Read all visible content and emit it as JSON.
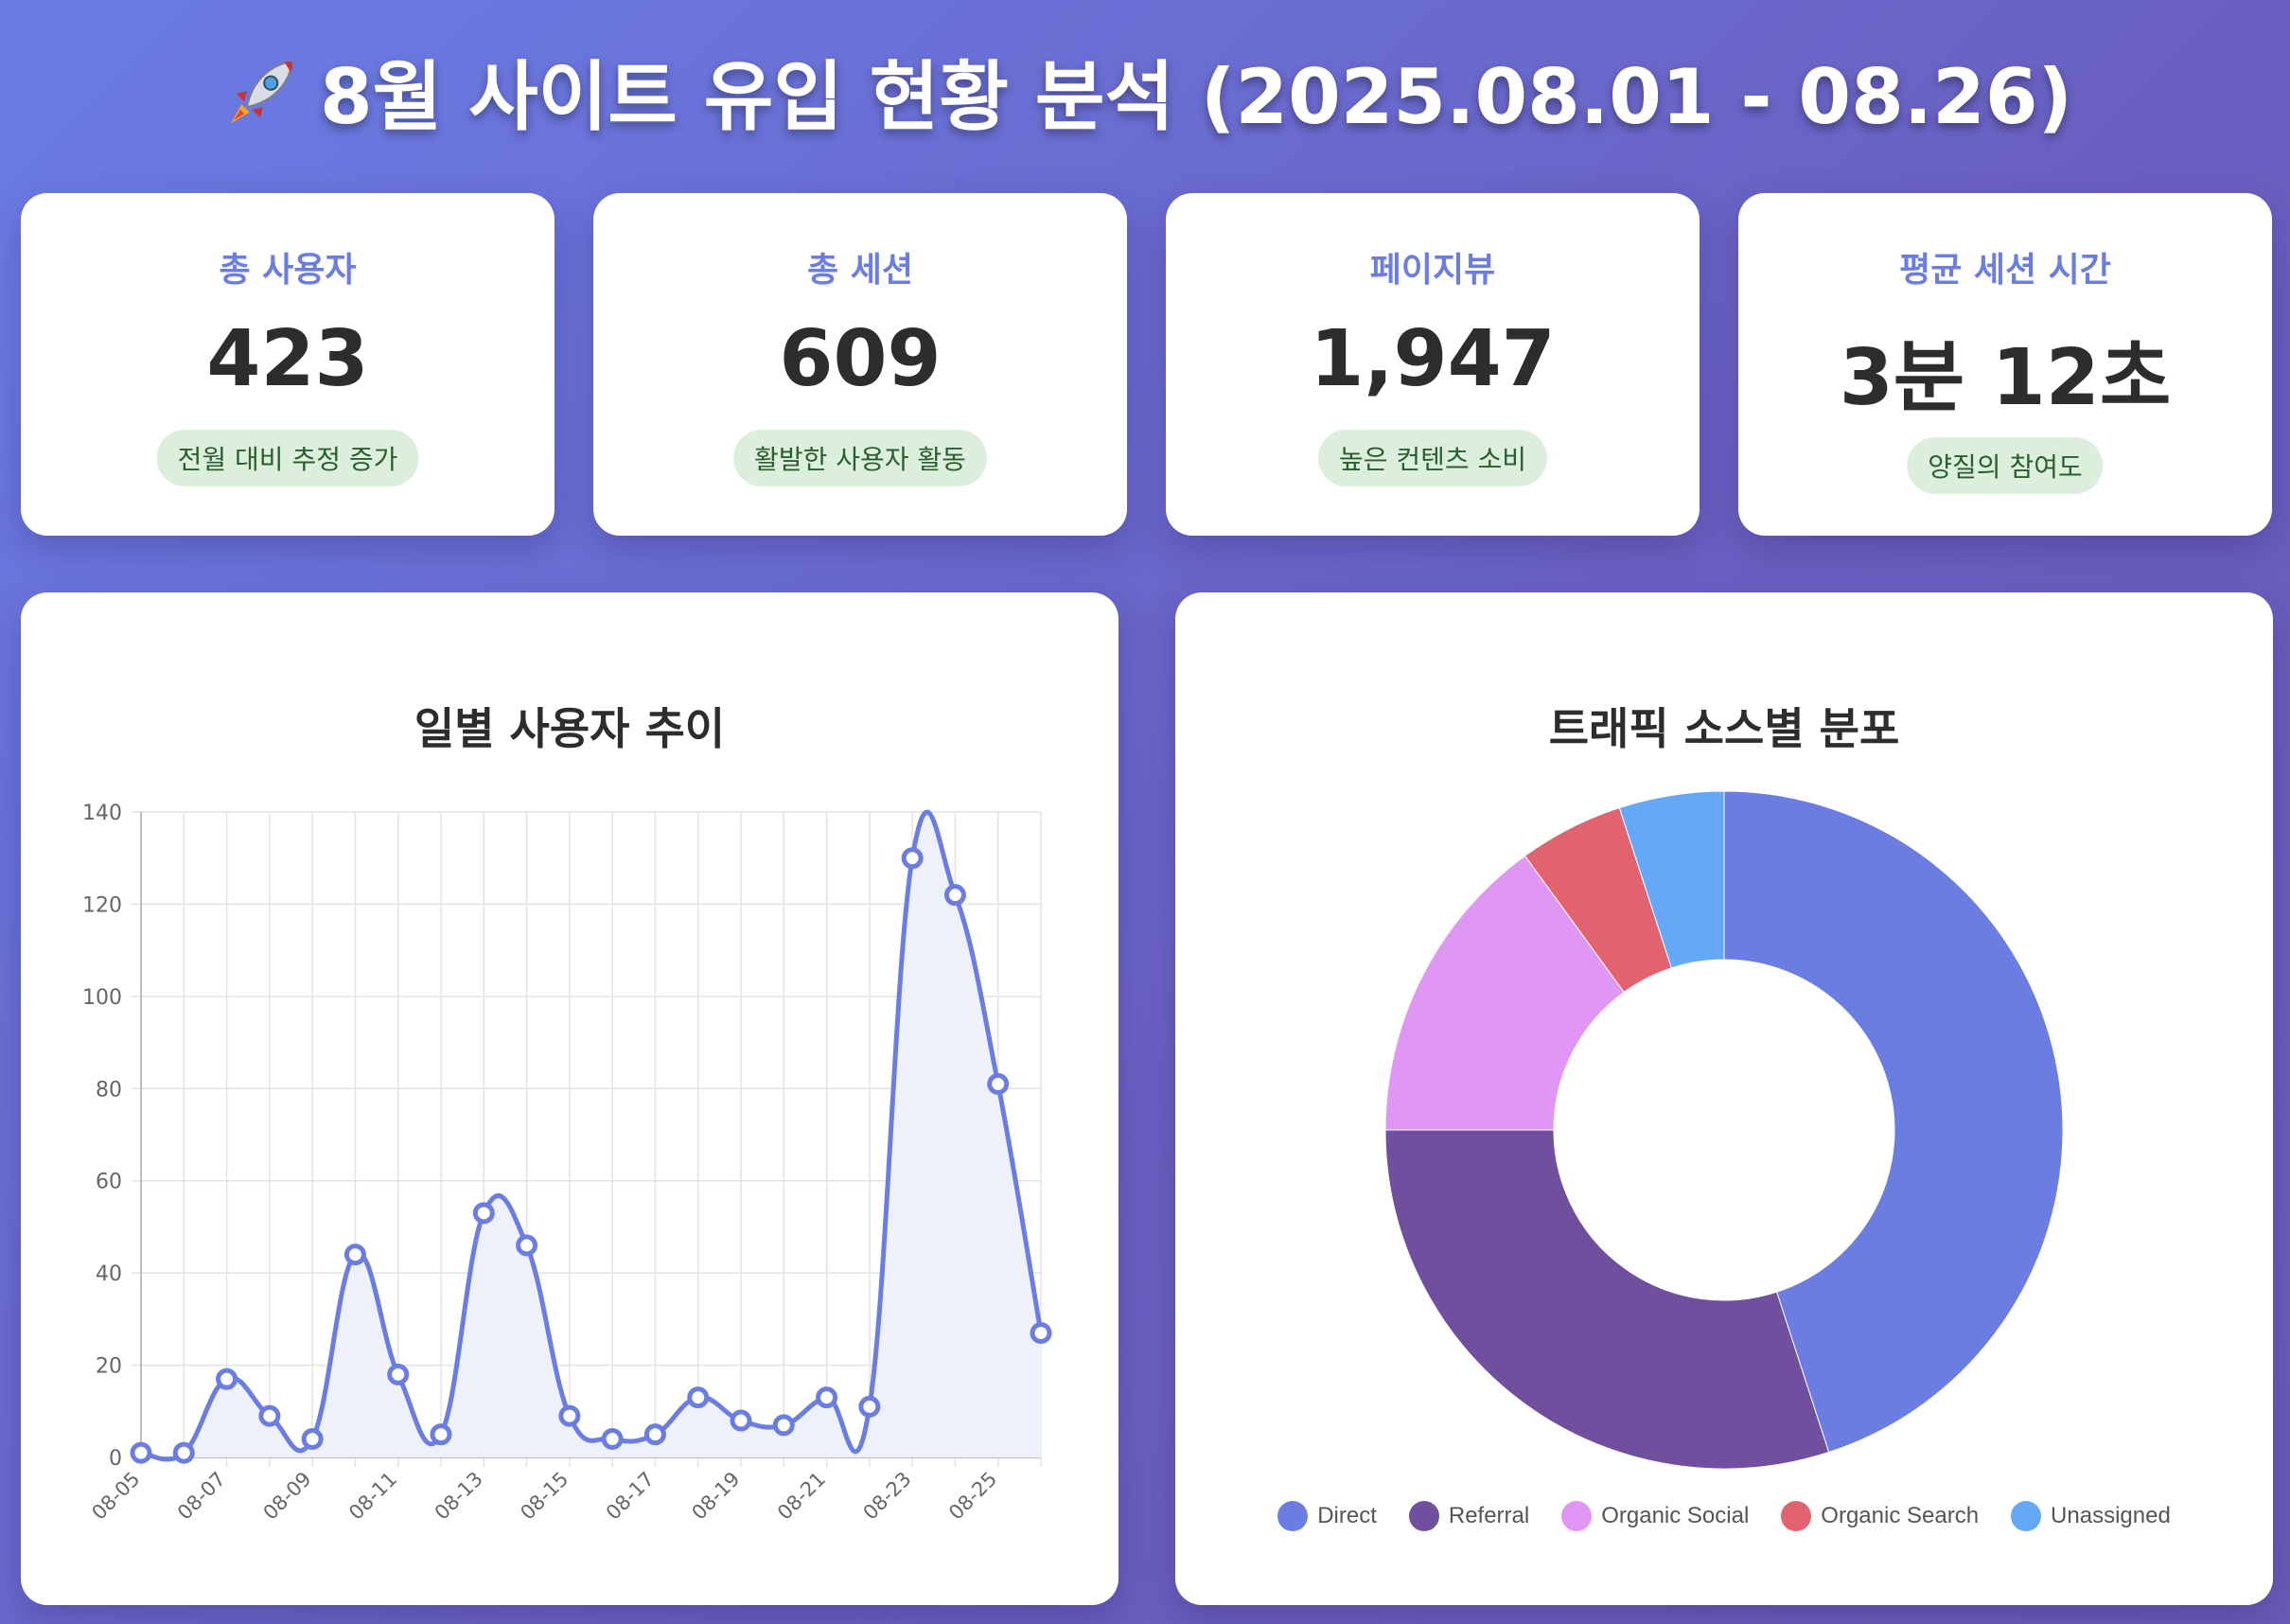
{
  "header": {
    "title": "8월 사이트 유입 현황 분석 (2025.08.01 - 08.26)",
    "icon": "rocket-icon"
  },
  "kpis": [
    {
      "label": "총 사용자",
      "value": "423",
      "badge": "전월 대비 추정 증가"
    },
    {
      "label": "총 세션",
      "value": "609",
      "badge": "활발한 사용자 활동"
    },
    {
      "label": "페이지뷰",
      "value": "1,947",
      "badge": "높은 컨텐츠 소비"
    },
    {
      "label": "평균 세션 시간",
      "value": "3분 12초",
      "badge": "양질의 참여도"
    }
  ],
  "colors": {
    "accent": "#6b7de0",
    "badge_bg": "#dcefdc",
    "badge_text": "#2b5e2f",
    "line": "#6b7de0",
    "line_fill": "#eef0fa"
  },
  "chart_data": [
    {
      "type": "line",
      "title": "일별 사용자 추이",
      "x": [
        "08-05",
        "08-06",
        "08-07",
        "08-08",
        "08-09",
        "08-10",
        "08-11",
        "08-12",
        "08-13",
        "08-14",
        "08-15",
        "08-16",
        "08-17",
        "08-18",
        "08-19",
        "08-20",
        "08-21",
        "08-22",
        "08-23",
        "08-24",
        "08-25",
        "08-26"
      ],
      "x_tick_labels": [
        "08-05",
        "08-07",
        "08-09",
        "08-11",
        "08-13",
        "08-15",
        "08-17",
        "08-19",
        "08-21",
        "08-23",
        "08-25"
      ],
      "series": [
        {
          "values": [
            1,
            1,
            17,
            9,
            4,
            44,
            18,
            5,
            53,
            46,
            9,
            4,
            5,
            13,
            8,
            7,
            13,
            11,
            130,
            122,
            81,
            27
          ]
        }
      ],
      "ylim": [
        0,
        140
      ],
      "y_ticks": [
        0,
        20,
        40,
        60,
        80,
        100,
        120,
        140
      ],
      "grid": true,
      "fill": true
    },
    {
      "type": "pie",
      "title": "트래픽 소스별 분포",
      "categories": [
        "Direct",
        "Referral",
        "Organic Social",
        "Organic Search",
        "Unassigned"
      ],
      "values": [
        45,
        30,
        15,
        5,
        5
      ],
      "colors": [
        "#6b7de0",
        "#714f9f",
        "#e096f3",
        "#e0636f",
        "#64a8f7"
      ],
      "legend": "bottom",
      "doughnut": true
    }
  ]
}
